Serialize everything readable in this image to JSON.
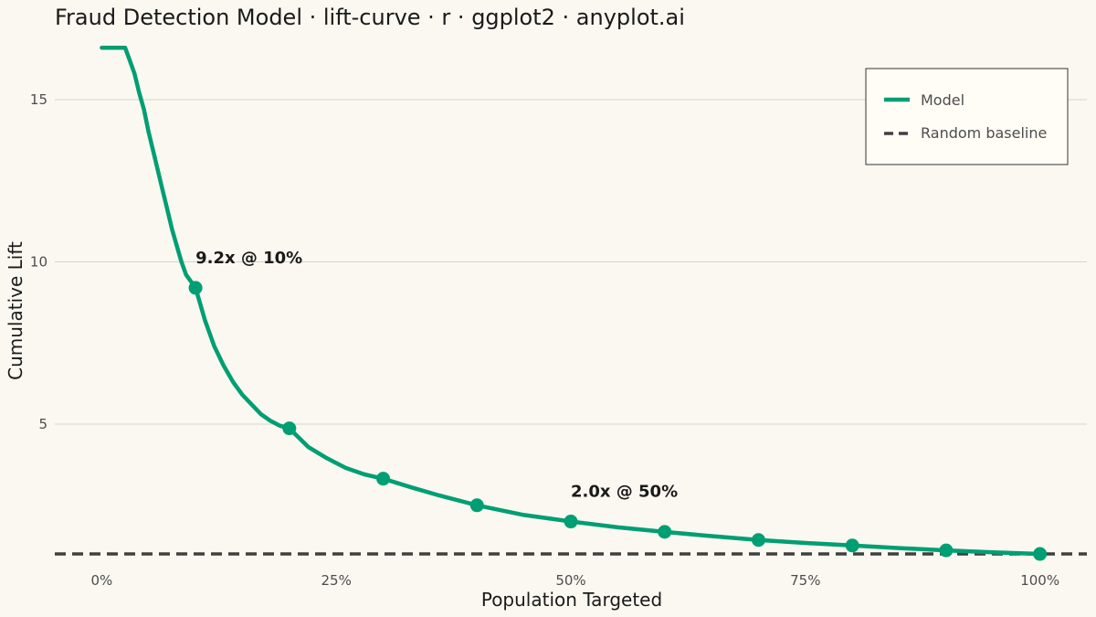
{
  "chart_data": {
    "type": "line",
    "title": "Fraud Detection Model · lift-curve · r · ggplot2 · anyplot.ai",
    "xlabel": "Population Targeted",
    "ylabel": "Cumulative Lift",
    "xlim": [
      -0.05,
      1.05
    ],
    "ylim": [
      0.55,
      17.0
    ],
    "x_ticks": [
      0,
      0.25,
      0.5,
      0.75,
      1.0
    ],
    "x_tick_labels": [
      "0%",
      "25%",
      "50%",
      "75%",
      "100%"
    ],
    "y_ticks": [
      5,
      10,
      15
    ],
    "y_tick_labels": [
      "5",
      "10",
      "15"
    ],
    "grid": "horizontal",
    "legend_position": "top-right",
    "series": [
      {
        "name": "Model",
        "style": "solid",
        "color": "#009E73",
        "x": [
          0.0,
          0.01,
          0.02,
          0.025,
          0.03,
          0.035,
          0.04,
          0.045,
          0.05,
          0.055,
          0.06,
          0.065,
          0.07,
          0.075,
          0.08,
          0.085,
          0.09,
          0.095,
          0.1,
          0.11,
          0.12,
          0.13,
          0.14,
          0.15,
          0.16,
          0.17,
          0.18,
          0.19,
          0.2,
          0.22,
          0.24,
          0.26,
          0.28,
          0.3,
          0.33,
          0.36,
          0.4,
          0.45,
          0.5,
          0.55,
          0.6,
          0.65,
          0.7,
          0.75,
          0.8,
          0.85,
          0.9,
          0.95,
          1.0
        ],
        "values": [
          16.6,
          16.6,
          16.6,
          16.6,
          16.2,
          15.8,
          15.2,
          14.7,
          14.0,
          13.4,
          12.8,
          12.2,
          11.6,
          11.0,
          10.5,
          10.0,
          9.6,
          9.4,
          9.2,
          8.2,
          7.4,
          6.8,
          6.3,
          5.9,
          5.6,
          5.3,
          5.1,
          4.95,
          4.87,
          4.3,
          3.95,
          3.65,
          3.45,
          3.32,
          3.05,
          2.8,
          2.5,
          2.2,
          2.0,
          1.82,
          1.68,
          1.55,
          1.43,
          1.34,
          1.26,
          1.18,
          1.11,
          1.05,
          1.0
        ]
      },
      {
        "name": "Random baseline",
        "style": "dashed",
        "color": "#404040",
        "x": [
          -0.05,
          1.05
        ],
        "values": [
          1.0,
          1.0
        ]
      }
    ],
    "markers": {
      "series": "Model",
      "x": [
        0.1,
        0.2,
        0.3,
        0.4,
        0.5,
        0.6,
        0.7,
        0.8,
        0.9,
        1.0
      ],
      "values": [
        9.2,
        4.87,
        3.32,
        2.5,
        2.0,
        1.68,
        1.43,
        1.26,
        1.11,
        1.0
      ]
    },
    "annotations": [
      {
        "text": "9.2x @ 10%",
        "x": 0.1,
        "y": 9.2
      },
      {
        "text": "2.0x @ 50%",
        "x": 0.5,
        "y": 2.0
      }
    ]
  }
}
